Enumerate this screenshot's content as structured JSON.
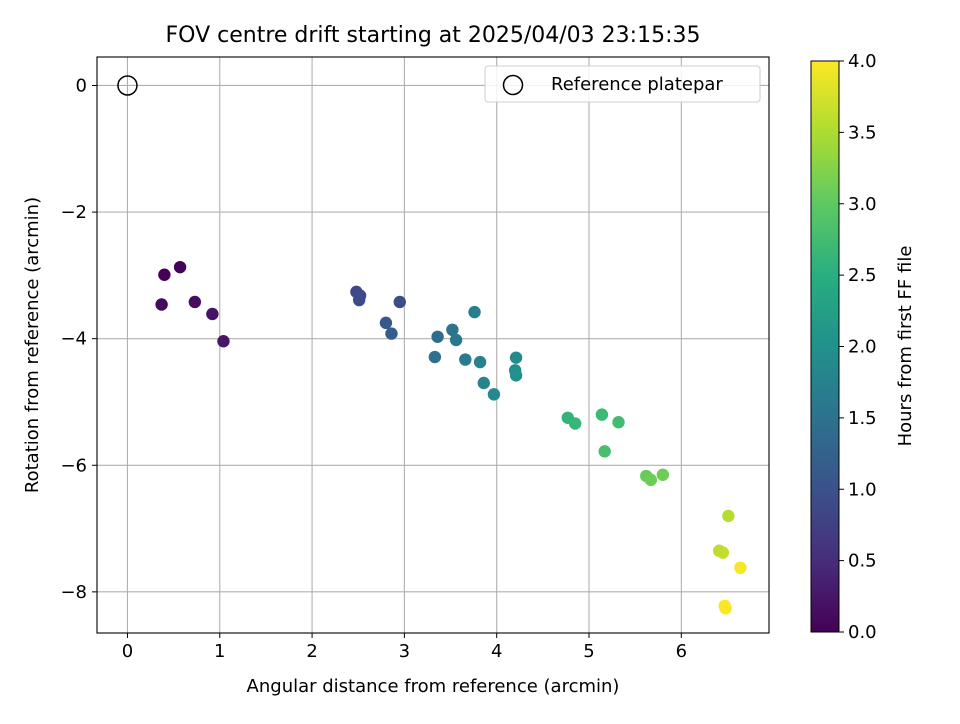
{
  "chart_data": {
    "type": "scatter",
    "title": "FOV centre drift starting at 2025/04/03 23:15:35",
    "xlabel": "Angular distance from reference (arcmin)",
    "ylabel": "Rotation from reference (arcmin)",
    "xlim": [
      -0.33,
      6.95
    ],
    "ylim": [
      -8.65,
      0.45
    ],
    "xticks": [
      "0",
      "1",
      "2",
      "3",
      "4",
      "5",
      "6"
    ],
    "yticks": [
      "0",
      "−2",
      "−4",
      "−6",
      "−8"
    ],
    "grid": true,
    "legend": {
      "position": "top-right",
      "entries": [
        "Reference platepar"
      ]
    },
    "reference": {
      "x": 0,
      "y": 0
    },
    "colorbar": {
      "label": "Hours from first FF file",
      "range": [
        0.0,
        4.0
      ],
      "ticks": [
        "0.0",
        "0.5",
        "1.0",
        "1.5",
        "2.0",
        "2.5",
        "3.0",
        "3.5",
        "4.0"
      ],
      "colormap": "viridis"
    },
    "points": [
      {
        "x": 0.4,
        "y": -2.99,
        "t": 0.0
      },
      {
        "x": 0.57,
        "y": -2.87,
        "t": 0.05
      },
      {
        "x": 0.37,
        "y": -3.46,
        "t": 0.1
      },
      {
        "x": 0.73,
        "y": -3.42,
        "t": 0.15
      },
      {
        "x": 0.92,
        "y": -3.61,
        "t": 0.2
      },
      {
        "x": 1.04,
        "y": -4.04,
        "t": 0.25
      },
      {
        "x": 2.48,
        "y": -3.26,
        "t": 0.85
      },
      {
        "x": 2.52,
        "y": -3.32,
        "t": 0.9
      },
      {
        "x": 2.51,
        "y": -3.39,
        "t": 0.92
      },
      {
        "x": 2.95,
        "y": -3.42,
        "t": 0.95
      },
      {
        "x": 2.8,
        "y": -3.75,
        "t": 1.1
      },
      {
        "x": 2.86,
        "y": -3.92,
        "t": 1.15
      },
      {
        "x": 3.36,
        "y": -3.97,
        "t": 1.4
      },
      {
        "x": 3.33,
        "y": -4.29,
        "t": 1.45
      },
      {
        "x": 3.52,
        "y": -3.86,
        "t": 1.55
      },
      {
        "x": 3.56,
        "y": -4.02,
        "t": 1.6
      },
      {
        "x": 3.66,
        "y": -4.33,
        "t": 1.65
      },
      {
        "x": 3.76,
        "y": -3.58,
        "t": 1.7
      },
      {
        "x": 3.82,
        "y": -4.37,
        "t": 1.75
      },
      {
        "x": 3.86,
        "y": -4.7,
        "t": 1.8
      },
      {
        "x": 3.97,
        "y": -4.88,
        "t": 1.85
      },
      {
        "x": 4.21,
        "y": -4.3,
        "t": 1.9
      },
      {
        "x": 4.2,
        "y": -4.5,
        "t": 1.95
      },
      {
        "x": 4.21,
        "y": -4.58,
        "t": 2.0
      },
      {
        "x": 4.77,
        "y": -5.25,
        "t": 2.6
      },
      {
        "x": 4.85,
        "y": -5.34,
        "t": 2.65
      },
      {
        "x": 5.14,
        "y": -5.2,
        "t": 2.7
      },
      {
        "x": 5.32,
        "y": -5.32,
        "t": 2.75
      },
      {
        "x": 5.17,
        "y": -5.78,
        "t": 2.8
      },
      {
        "x": 5.62,
        "y": -6.17,
        "t": 3.05
      },
      {
        "x": 5.67,
        "y": -6.23,
        "t": 3.1
      },
      {
        "x": 5.8,
        "y": -6.15,
        "t": 3.1
      },
      {
        "x": 6.51,
        "y": -6.8,
        "t": 3.55
      },
      {
        "x": 6.41,
        "y": -7.35,
        "t": 3.6
      },
      {
        "x": 6.45,
        "y": -7.38,
        "t": 3.62
      },
      {
        "x": 6.64,
        "y": -7.62,
        "t": 3.95
      },
      {
        "x": 6.47,
        "y": -8.22,
        "t": 4.0
      },
      {
        "x": 6.48,
        "y": -8.26,
        "t": 4.0
      }
    ]
  }
}
